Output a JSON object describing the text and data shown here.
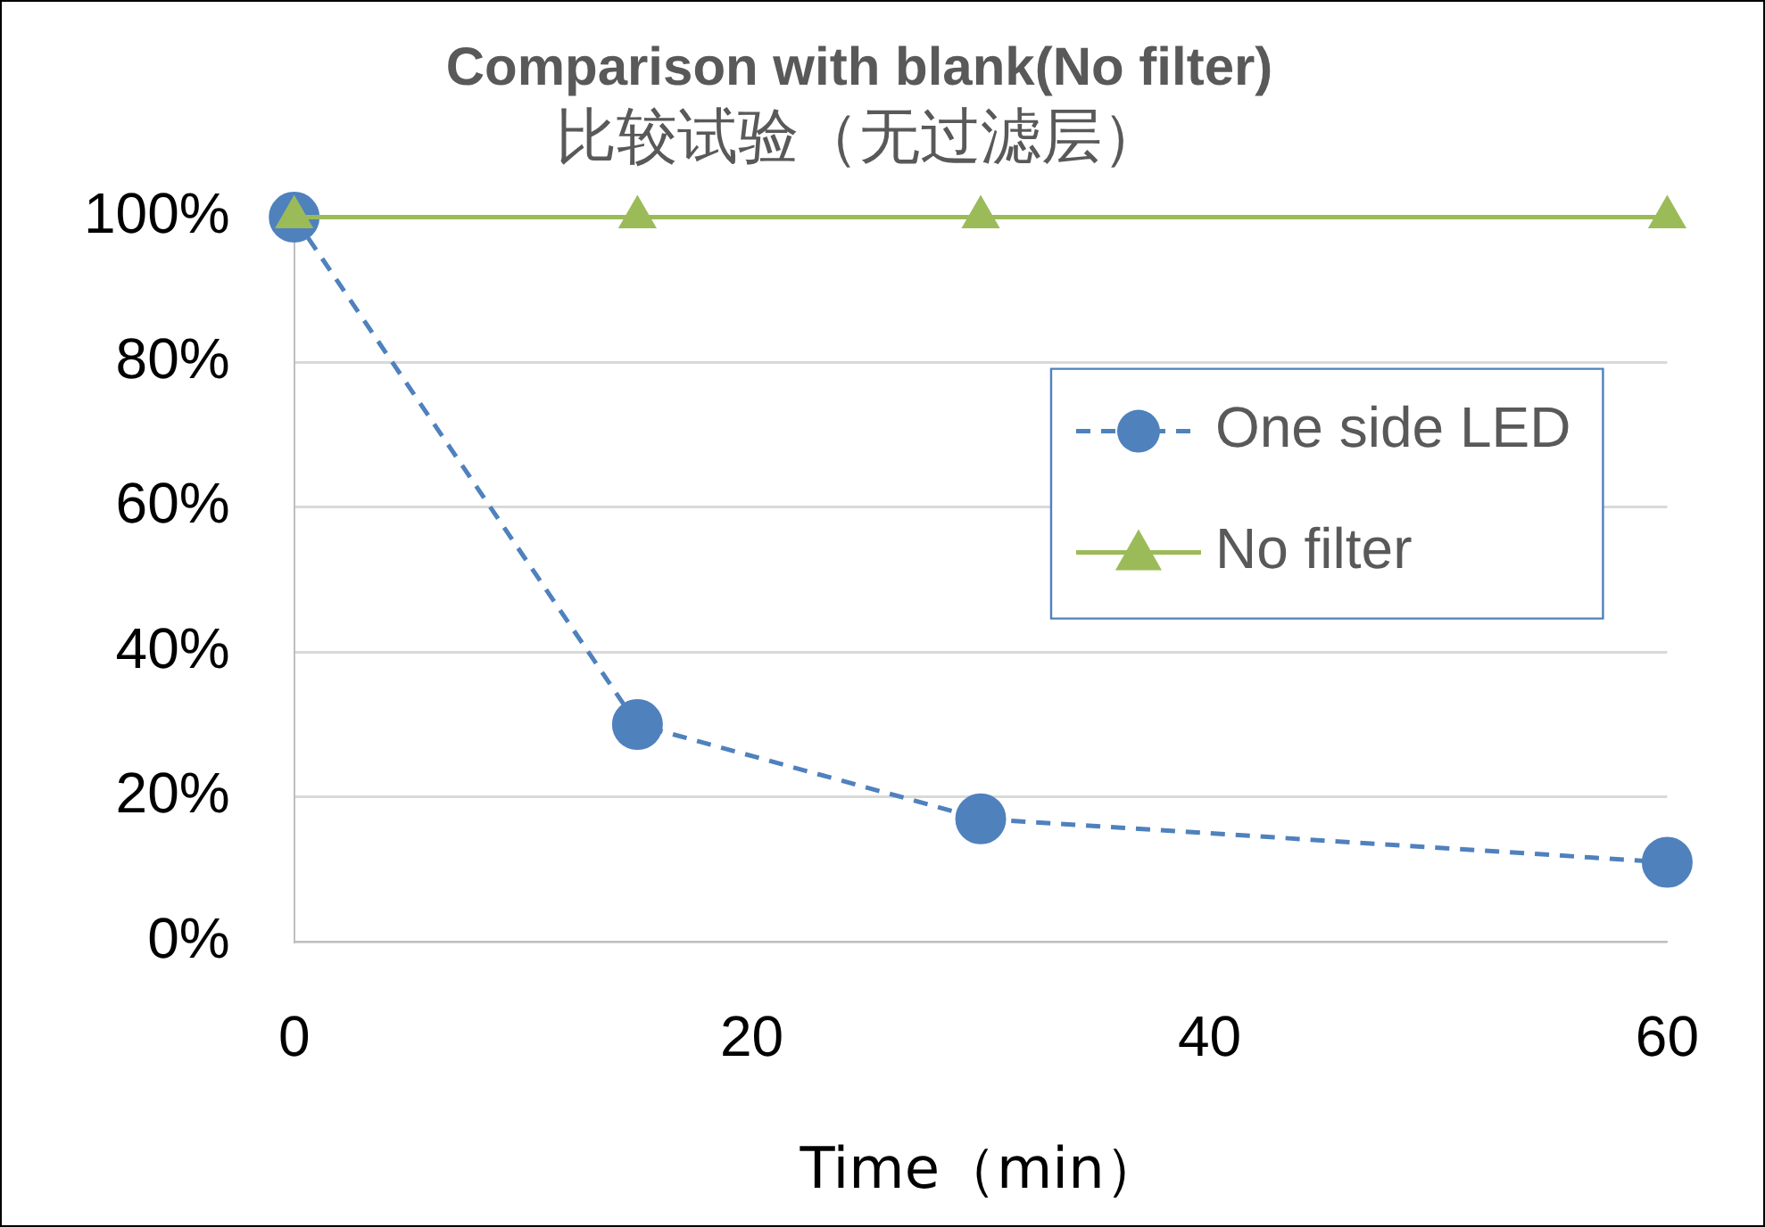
{
  "chart_data": {
    "type": "line",
    "title": "Comparison with blank(No filter)",
    "subtitle": "比较试验（无过滤层）",
    "xlabel": "Time（min）",
    "x": [
      0,
      15,
      30,
      60
    ],
    "series": [
      {
        "name": "One side LED",
        "color": "#4f81bd",
        "values": [
          100,
          30,
          17,
          11
        ],
        "marker": "circle",
        "line_style": "dashed"
      },
      {
        "name": "No filter",
        "color": "#9bbb59",
        "values": [
          100,
          100,
          100,
          100
        ],
        "marker": "triangle",
        "line_style": "solid"
      }
    ],
    "xlim": [
      0,
      60
    ],
    "xticks": [
      0,
      20,
      40,
      60
    ],
    "ylim": [
      0,
      100
    ],
    "yticks": [
      {
        "value": 0,
        "label": "0%"
      },
      {
        "value": 20,
        "label": "20%"
      },
      {
        "value": 40,
        "label": "40%"
      },
      {
        "value": 60,
        "label": "60%"
      },
      {
        "value": 80,
        "label": "80%"
      },
      {
        "value": 100,
        "label": "100%"
      }
    ],
    "grid": "y",
    "legend": "right"
  }
}
